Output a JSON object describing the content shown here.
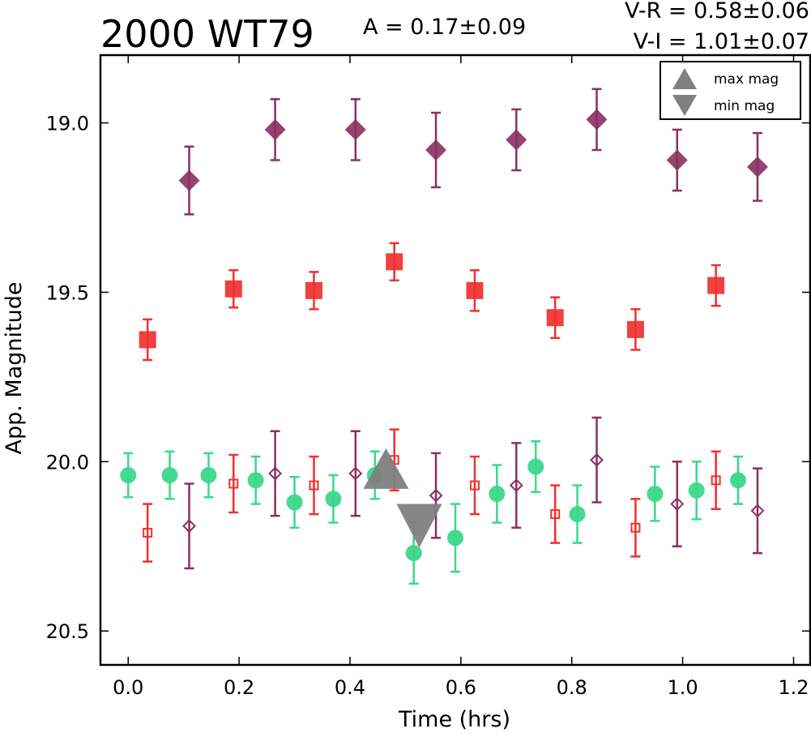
{
  "chart_data": {
    "type": "scatter",
    "title": "2000 WT79",
    "amplitude_text": "A  = 0.17±0.09",
    "color_texts": [
      "V-R = 0.58±0.06",
      "V-I  = 1.01±0.07"
    ],
    "xlabel": "Time (hrs)",
    "ylabel": "App. Magnitude",
    "xlim": [
      -0.05,
      1.23
    ],
    "ylim": [
      20.6,
      18.8
    ],
    "y_inverted": true,
    "x_ticks": [
      0.0,
      0.2,
      0.4,
      0.6,
      0.8,
      1.0,
      1.2
    ],
    "x_tick_labels": [
      "0.0",
      "0.2",
      "0.4",
      "0.6",
      "0.8",
      "1.0",
      "1.2"
    ],
    "y_ticks": [
      19.0,
      19.5,
      20.0,
      20.5
    ],
    "y_tick_labels": [
      "19.0",
      "19.5",
      "20.0",
      "20.5"
    ],
    "grid": false,
    "legend_position": "top-right",
    "legend": [
      {
        "label": "max mag",
        "marker": "triangle-up",
        "color": "#808080"
      },
      {
        "label": "min mag",
        "marker": "triangle-down",
        "color": "#808080"
      }
    ],
    "series": [
      {
        "marker": "diamond-filled",
        "color": "#8b2f60",
        "points": [
          {
            "x": 0.11,
            "y": 19.17,
            "err": 0.1
          },
          {
            "x": 0.265,
            "y": 19.02,
            "err": 0.09
          },
          {
            "x": 0.41,
            "y": 19.02,
            "err": 0.09
          },
          {
            "x": 0.555,
            "y": 19.08,
            "err": 0.11
          },
          {
            "x": 0.7,
            "y": 19.05,
            "err": 0.09
          },
          {
            "x": 0.845,
            "y": 18.99,
            "err": 0.09
          },
          {
            "x": 0.99,
            "y": 19.11,
            "err": 0.09
          },
          {
            "x": 1.135,
            "y": 19.13,
            "err": 0.1
          }
        ]
      },
      {
        "marker": "square-filled",
        "color": "#f03030",
        "points": [
          {
            "x": 0.035,
            "y": 19.64,
            "err": 0.06
          },
          {
            "x": 0.19,
            "y": 19.49,
            "err": 0.055
          },
          {
            "x": 0.335,
            "y": 19.495,
            "err": 0.055
          },
          {
            "x": 0.48,
            "y": 19.41,
            "err": 0.055
          },
          {
            "x": 0.625,
            "y": 19.495,
            "err": 0.06
          },
          {
            "x": 0.77,
            "y": 19.575,
            "err": 0.06
          },
          {
            "x": 0.915,
            "y": 19.61,
            "err": 0.06
          },
          {
            "x": 1.06,
            "y": 19.48,
            "err": 0.06
          }
        ]
      },
      {
        "marker": "circle-filled",
        "color": "#3cd78c",
        "points": [
          {
            "x": 0.0,
            "y": 20.04,
            "err": 0.065
          },
          {
            "x": 0.075,
            "y": 20.04,
            "err": 0.07
          },
          {
            "x": 0.145,
            "y": 20.04,
            "err": 0.065
          },
          {
            "x": 0.23,
            "y": 20.055,
            "err": 0.07
          },
          {
            "x": 0.3,
            "y": 20.12,
            "err": 0.075
          },
          {
            "x": 0.37,
            "y": 20.11,
            "err": 0.07
          },
          {
            "x": 0.445,
            "y": 20.04,
            "err": 0.07
          },
          {
            "x": 0.515,
            "y": 20.27,
            "err": 0.09
          },
          {
            "x": 0.59,
            "y": 20.225,
            "err": 0.1
          },
          {
            "x": 0.665,
            "y": 20.095,
            "err": 0.085
          },
          {
            "x": 0.735,
            "y": 20.015,
            "err": 0.075
          },
          {
            "x": 0.81,
            "y": 20.155,
            "err": 0.085
          },
          {
            "x": 0.95,
            "y": 20.095,
            "err": 0.08
          },
          {
            "x": 1.025,
            "y": 20.085,
            "err": 0.085
          },
          {
            "x": 1.1,
            "y": 20.055,
            "err": 0.07
          }
        ]
      },
      {
        "marker": "square-open",
        "color": "#f03030",
        "points": [
          {
            "x": 0.035,
            "y": 20.21,
            "err": 0.085
          },
          {
            "x": 0.19,
            "y": 20.065,
            "err": 0.085
          },
          {
            "x": 0.335,
            "y": 20.07,
            "err": 0.085
          },
          {
            "x": 0.48,
            "y": 19.995,
            "err": 0.09
          },
          {
            "x": 0.625,
            "y": 20.07,
            "err": 0.085
          },
          {
            "x": 0.77,
            "y": 20.155,
            "err": 0.085
          },
          {
            "x": 0.915,
            "y": 20.195,
            "err": 0.085
          },
          {
            "x": 1.06,
            "y": 20.055,
            "err": 0.085
          }
        ]
      },
      {
        "marker": "diamond-open",
        "color": "#8b2f60",
        "points": [
          {
            "x": 0.11,
            "y": 20.19,
            "err": 0.125
          },
          {
            "x": 0.265,
            "y": 20.035,
            "err": 0.125
          },
          {
            "x": 0.41,
            "y": 20.035,
            "err": 0.125
          },
          {
            "x": 0.555,
            "y": 20.1,
            "err": 0.125
          },
          {
            "x": 0.7,
            "y": 20.07,
            "err": 0.125
          },
          {
            "x": 0.845,
            "y": 19.995,
            "err": 0.125
          },
          {
            "x": 0.99,
            "y": 20.125,
            "err": 0.125
          },
          {
            "x": 1.135,
            "y": 20.145,
            "err": 0.125
          }
        ]
      }
    ],
    "extrema_markers": [
      {
        "type": "max",
        "marker": "triangle-up",
        "color": "#808080",
        "x": 0.465,
        "y": 20.03
      },
      {
        "type": "min",
        "marker": "triangle-down",
        "color": "#808080",
        "x": 0.525,
        "y": 20.18
      }
    ]
  }
}
